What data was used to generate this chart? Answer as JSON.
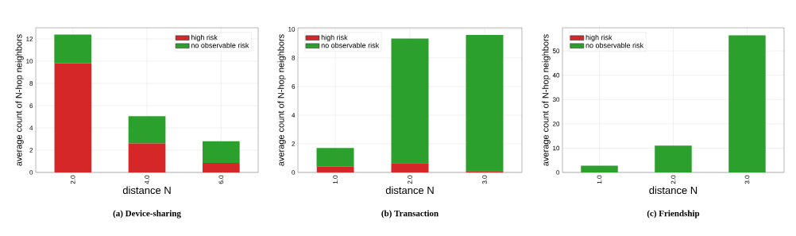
{
  "chart_data": [
    {
      "type": "bar",
      "title": "(a) Device-sharing",
      "xlabel": "distance N",
      "ylabel": "average count of N-hop neighbors",
      "categories": [
        "2.0",
        "4.0",
        "6.0"
      ],
      "stacked": true,
      "series": [
        {
          "name": "high risk",
          "color": "#d62728",
          "values": [
            9.8,
            2.6,
            0.85
          ]
        },
        {
          "name": "no observable risk",
          "color": "#2ca02c",
          "values": [
            2.6,
            2.45,
            1.95
          ]
        }
      ],
      "ylim": [
        0,
        13
      ],
      "yticks": [
        0,
        2,
        4,
        6,
        8,
        10,
        12
      ],
      "grid": true,
      "legend": "top right"
    },
    {
      "type": "bar",
      "title": "(b) Transaction",
      "xlabel": "distance N",
      "ylabel": "average count of N-hop neighbors",
      "categories": [
        "1.0",
        "2.0",
        "3.0"
      ],
      "stacked": true,
      "series": [
        {
          "name": "high risk",
          "color": "#d62728",
          "values": [
            0.4,
            0.65,
            0.1
          ]
        },
        {
          "name": "no observable risk",
          "color": "#2ca02c",
          "values": [
            1.3,
            8.7,
            9.5
          ]
        }
      ],
      "ylim": [
        0,
        10.1
      ],
      "yticks": [
        0,
        2,
        4,
        6,
        8,
        10
      ],
      "grid": true,
      "legend": "top left"
    },
    {
      "type": "bar",
      "title": "(c) Friendship",
      "xlabel": "distance N",
      "ylabel": "average count of N-hop neighbors",
      "categories": [
        "1.0",
        "2.0",
        "3.0"
      ],
      "stacked": true,
      "series": [
        {
          "name": "high risk",
          "color": "#d62728",
          "values": [
            0,
            0,
            0
          ]
        },
        {
          "name": "no observable risk",
          "color": "#2ca02c",
          "values": [
            2.8,
            11,
            56.5
          ]
        }
      ],
      "ylim": [
        0,
        59.5
      ],
      "yticks": [
        0,
        10,
        20,
        30,
        40,
        50
      ],
      "grid": true,
      "legend": "top left"
    }
  ]
}
